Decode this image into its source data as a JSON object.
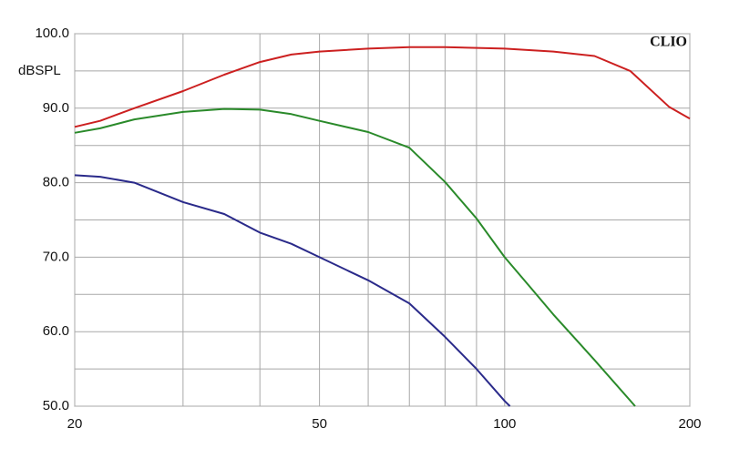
{
  "chart_data": {
    "type": "line",
    "y_label": "dBSPL",
    "watermark": "CLIO",
    "xscale": "log",
    "xlim": [
      20,
      200
    ],
    "xticks": [
      20,
      50,
      100,
      200
    ],
    "minor_xticks": [
      30,
      40,
      60,
      70,
      80,
      90
    ],
    "ylim": [
      50,
      100
    ],
    "yticks": [
      {
        "value": 50,
        "label": "50.0"
      },
      {
        "value": 60,
        "label": "60.0"
      },
      {
        "value": 70,
        "label": "70.0"
      },
      {
        "value": 80,
        "label": "80.0"
      },
      {
        "value": 90,
        "label": "90.0"
      },
      {
        "value": 100,
        "label": "100.0"
      }
    ],
    "minor_yticks": [
      55,
      65,
      75,
      85,
      95
    ],
    "grid": true,
    "series": [
      {
        "color": "#cc2020",
        "x": [
          20,
          22,
          25,
          30,
          35,
          40,
          45,
          50,
          60,
          70,
          80,
          100,
          120,
          140,
          160,
          185,
          200
        ],
        "values": [
          87.5,
          88.3,
          90,
          92.3,
          94.5,
          96.2,
          97.2,
          97.6,
          98,
          98.2,
          98.2,
          98,
          97.6,
          97,
          95,
          90.2,
          88.6
        ]
      },
      {
        "color": "#2a8a2a",
        "x": [
          20,
          22,
          25,
          30,
          35,
          40,
          45,
          50,
          60,
          70,
          80,
          90,
          100,
          110,
          120,
          140,
          163
        ],
        "values": [
          86.7,
          87.3,
          88.5,
          89.5,
          89.9,
          89.8,
          89.2,
          88.3,
          86.8,
          84.7,
          80.1,
          75.2,
          70,
          66,
          62.3,
          56.2,
          50
        ]
      },
      {
        "color": "#2a2a8a",
        "x": [
          20,
          22,
          25,
          30,
          35,
          40,
          45,
          50,
          60,
          70,
          80,
          90,
          100,
          102
        ],
        "values": [
          81,
          80.8,
          80,
          77.4,
          75.8,
          73.3,
          71.8,
          70,
          66.9,
          63.8,
          59.3,
          55,
          50.7,
          50
        ]
      }
    ]
  }
}
